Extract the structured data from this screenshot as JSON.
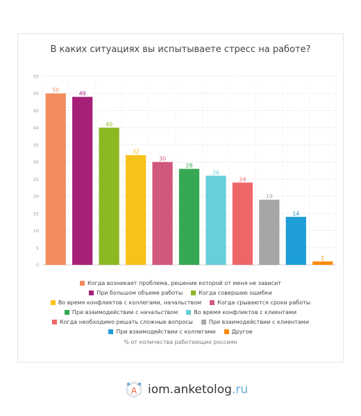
{
  "chart_data": {
    "type": "bar",
    "title": "В каких ситуациях вы испытываете стресс на работе?",
    "ylim": [
      0,
      55
    ],
    "yticks": [
      0,
      5,
      10,
      15,
      20,
      25,
      30,
      35,
      40,
      45,
      50,
      55
    ],
    "grid": true,
    "legend_position": "bottom",
    "categories": [
      "Когда возникает проблема, решение которой от меня не зависит",
      "При большом объеме работы",
      "Когда совершаю ошибки",
      "Во время конфликтов с коллегами, начальством",
      "Когда срываются сроки работы",
      "При взаимодействии с начальством",
      "Во время конфликтов с клиентами",
      "Когда необходимо решать сложные вопросы",
      "При взаимодействии с клиентами",
      "При взаимодействии с коллегами",
      "Другое"
    ],
    "values": [
      50,
      49,
      40,
      32,
      30,
      28,
      26,
      24,
      19,
      14,
      1
    ],
    "colors": [
      "#f58c5e",
      "#a6207a",
      "#8cb823",
      "#f9c21b",
      "#d1587d",
      "#36a853",
      "#66cfd9",
      "#ef6667",
      "#a6a6a6",
      "#1d9ed6",
      "#ff8a0b"
    ],
    "note": "% от количества работающих россиян"
  },
  "brand": {
    "logo_letter": "A",
    "main": "iom.anketolog",
    "tld": ".ru"
  }
}
